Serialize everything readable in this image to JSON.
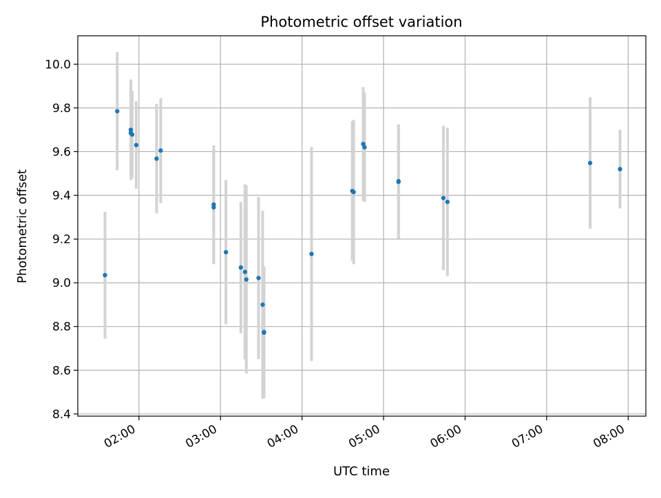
{
  "chart_data": {
    "type": "scatter",
    "title": "Photometric offset variation",
    "xlabel": "UTC time",
    "ylabel": "Photometric offset",
    "x_unit": "UTC time (HH:MM)",
    "xlim": [
      "01:15",
      "08:13"
    ],
    "ylim": [
      8.39,
      10.13
    ],
    "x_ticks": [
      "02:00",
      "03:00",
      "04:00",
      "05:00",
      "06:00",
      "07:00",
      "08:00"
    ],
    "y_ticks": [
      "8.4",
      "8.6",
      "8.8",
      "9.0",
      "9.2",
      "9.4",
      "9.6",
      "9.8",
      "10.0"
    ],
    "grid": true,
    "legend": "none",
    "marker_color": "#1f77b4",
    "errorbar_color": "#d3d3d3",
    "points": [
      {
        "x": "01:35",
        "y": 9.035,
        "err": 0.29
      },
      {
        "x": "01:44",
        "y": 9.785,
        "err": 0.27
      },
      {
        "x": "01:54",
        "y": 9.7,
        "err": 0.23
      },
      {
        "x": "01:54",
        "y": 9.685,
        "err": 0.21
      },
      {
        "x": "01:55",
        "y": 9.678,
        "err": 0.2
      },
      {
        "x": "01:58",
        "y": 9.63,
        "err": 0.2
      },
      {
        "x": "02:13",
        "y": 9.568,
        "err": 0.25
      },
      {
        "x": "02:16",
        "y": 9.605,
        "err": 0.24
      },
      {
        "x": "02:55",
        "y": 9.358,
        "err": 0.27
      },
      {
        "x": "02:55",
        "y": 9.345,
        "err": 0.26
      },
      {
        "x": "03:04",
        "y": 9.14,
        "err": 0.33
      },
      {
        "x": "03:15",
        "y": 9.07,
        "err": 0.3
      },
      {
        "x": "03:18",
        "y": 9.05,
        "err": 0.4
      },
      {
        "x": "03:19",
        "y": 9.015,
        "err": 0.43
      },
      {
        "x": "03:28",
        "y": 9.022,
        "err": 0.37
      },
      {
        "x": "03:31",
        "y": 8.9,
        "err": 0.43
      },
      {
        "x": "03:32",
        "y": 8.775,
        "err": 0.3
      },
      {
        "x": "03:32",
        "y": 8.772,
        "err": 0.3
      },
      {
        "x": "04:07",
        "y": 9.132,
        "err": 0.49
      },
      {
        "x": "04:37",
        "y": 9.42,
        "err": 0.32
      },
      {
        "x": "04:38",
        "y": 9.415,
        "err": 0.33
      },
      {
        "x": "04:45",
        "y": 9.635,
        "err": 0.26
      },
      {
        "x": "04:46",
        "y": 9.62,
        "err": 0.25
      },
      {
        "x": "05:11",
        "y": 9.465,
        "err": 0.26
      },
      {
        "x": "05:11",
        "y": 9.462,
        "err": 0.26
      },
      {
        "x": "05:44",
        "y": 9.388,
        "err": 0.33
      },
      {
        "x": "05:47",
        "y": 9.37,
        "err": 0.34
      },
      {
        "x": "07:32",
        "y": 9.548,
        "err": 0.3
      },
      {
        "x": "07:54",
        "y": 9.52,
        "err": 0.18
      }
    ]
  }
}
